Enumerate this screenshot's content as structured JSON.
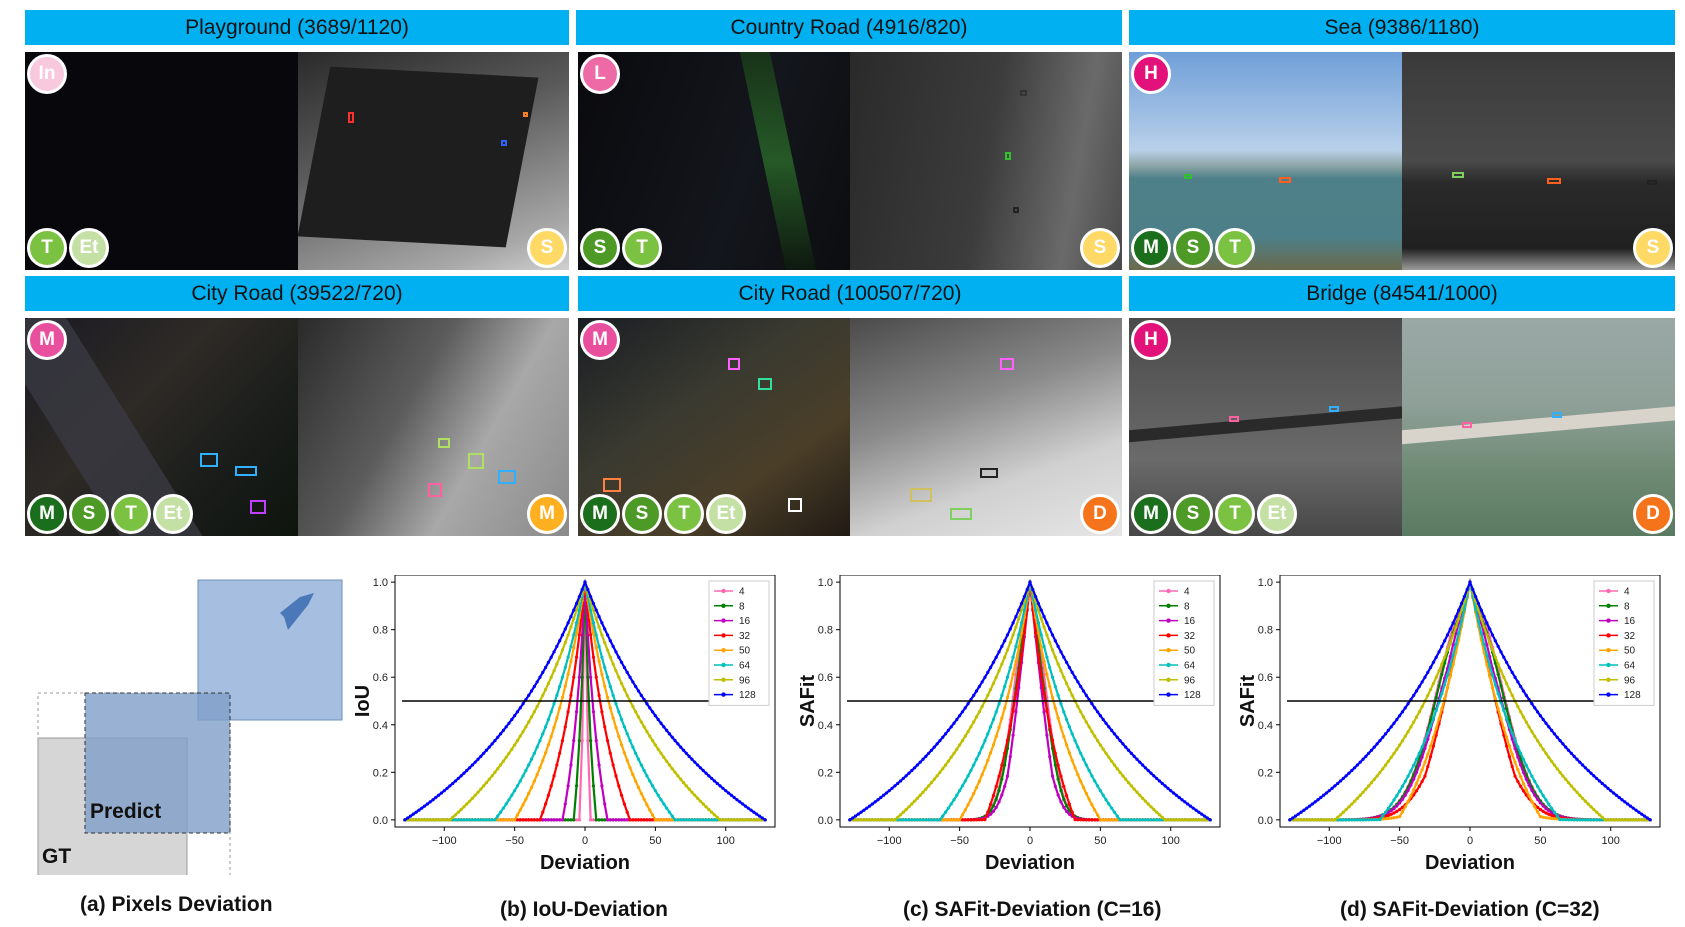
{
  "tiles": [
    {
      "title": "Playground (3689/1120)",
      "left_badges": [
        "T",
        "Et"
      ],
      "top_badge": "In",
      "right_badge": "S"
    },
    {
      "title": "Country Road (4916/820)",
      "left_badges": [
        "S",
        "T"
      ],
      "top_badge": "L",
      "right_badge": "S"
    },
    {
      "title": "Sea (9386/1180)",
      "left_badges": [
        "M",
        "S",
        "T"
      ],
      "top_badge": "H",
      "right_badge": "S"
    },
    {
      "title": "City Road (39522/720)",
      "left_badges": [
        "M",
        "S",
        "T",
        "Et"
      ],
      "top_badge": "M",
      "right_badge": "M"
    },
    {
      "title": "City Road (100507/720)",
      "left_badges": [
        "M",
        "S",
        "T",
        "Et"
      ],
      "top_badge": "M",
      "right_badge": "D"
    },
    {
      "title": "Bridge (84541/1000)",
      "left_badges": [
        "M",
        "S",
        "T",
        "Et"
      ],
      "top_badge": "H",
      "right_badge": "D"
    }
  ],
  "badge_colors": {
    "In": "#f8c8dc",
    "L": "#ee6aa7",
    "H": "#e3127a",
    "M_top": "#e8509e",
    "M": "#1b6e1b",
    "S": "#4e9a26",
    "T": "#7cc242",
    "Et": "#c5e0a5",
    "S_right": "#ffd966",
    "M_right": "#ffb020",
    "D_right": "#f5731a"
  },
  "diagram": {
    "predict_label": "Predict",
    "gt_label": "GT",
    "caption": "(a) Pixels Deviation"
  },
  "chart_data": [
    {
      "type": "line",
      "title": "(b) IoU-Deviation",
      "xlabel": "Deviation",
      "ylabel": "IoU",
      "xlim": [
        -135,
        135
      ],
      "ylim": [
        -0.03,
        1.03
      ],
      "xticks": [
        "-100",
        "-50",
        "0",
        "50",
        "100"
      ],
      "yticks": [
        "0.0",
        "0.2",
        "0.4",
        "0.6",
        "0.8",
        "1.0"
      ],
      "threshold": 0.5,
      "legend_position": "top-right",
      "metric": "iou",
      "C": 0,
      "series": [
        {
          "name": "4",
          "size": 4,
          "color": "#ff69b4"
        },
        {
          "name": "8",
          "size": 8,
          "color": "#008000"
        },
        {
          "name": "16",
          "size": 16,
          "color": "#c000c0"
        },
        {
          "name": "32",
          "size": 32,
          "color": "#ff0000"
        },
        {
          "name": "50",
          "size": 50,
          "color": "#ffa500"
        },
        {
          "name": "64",
          "size": 64,
          "color": "#00bfbf"
        },
        {
          "name": "96",
          "size": 96,
          "color": "#bfbf00"
        },
        {
          "name": "128",
          "size": 128,
          "color": "#0000ff"
        }
      ]
    },
    {
      "type": "line",
      "title": "(c) SAFit-Deviation (C=16)",
      "xlabel": "Deviation",
      "ylabel": "SAFit",
      "xlim": [
        -135,
        135
      ],
      "ylim": [
        -0.03,
        1.03
      ],
      "xticks": [
        "-100",
        "-50",
        "0",
        "50",
        "100"
      ],
      "yticks": [
        "0.0",
        "0.2",
        "0.4",
        "0.6",
        "0.8",
        "1.0"
      ],
      "threshold": 0.5,
      "legend_position": "top-right",
      "metric": "safit",
      "C": 16,
      "series": [
        {
          "name": "4",
          "size": 4,
          "color": "#ff69b4"
        },
        {
          "name": "8",
          "size": 8,
          "color": "#008000"
        },
        {
          "name": "16",
          "size": 16,
          "color": "#c000c0"
        },
        {
          "name": "32",
          "size": 32,
          "color": "#ff0000"
        },
        {
          "name": "50",
          "size": 50,
          "color": "#ffa500"
        },
        {
          "name": "64",
          "size": 64,
          "color": "#00bfbf"
        },
        {
          "name": "96",
          "size": 96,
          "color": "#bfbf00"
        },
        {
          "name": "128",
          "size": 128,
          "color": "#0000ff"
        }
      ]
    },
    {
      "type": "line",
      "title": "(d) SAFit-Deviation (C=32)",
      "xlabel": "Deviation",
      "ylabel": "SAFit",
      "xlim": [
        -135,
        135
      ],
      "ylim": [
        -0.03,
        1.03
      ],
      "xticks": [
        "-100",
        "-50",
        "0",
        "50",
        "100"
      ],
      "yticks": [
        "0.0",
        "0.2",
        "0.4",
        "0.6",
        "0.8",
        "1.0"
      ],
      "threshold": 0.5,
      "legend_position": "top-right",
      "metric": "safit",
      "C": 32,
      "series": [
        {
          "name": "4",
          "size": 4,
          "color": "#ff69b4"
        },
        {
          "name": "8",
          "size": 8,
          "color": "#008000"
        },
        {
          "name": "16",
          "size": 16,
          "color": "#c000c0"
        },
        {
          "name": "32",
          "size": 32,
          "color": "#ff0000"
        },
        {
          "name": "50",
          "size": 50,
          "color": "#ffa500"
        },
        {
          "name": "64",
          "size": 64,
          "color": "#00bfbf"
        },
        {
          "name": "96",
          "size": 96,
          "color": "#bfbf00"
        },
        {
          "name": "128",
          "size": 128,
          "color": "#0000ff"
        }
      ]
    }
  ]
}
